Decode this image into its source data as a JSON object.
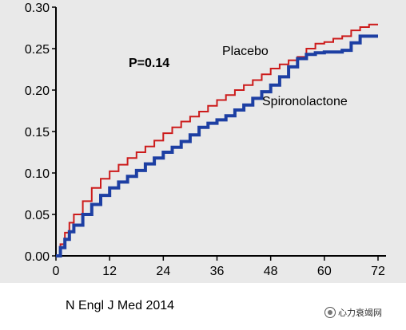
{
  "chart_data": {
    "type": "line",
    "title": "",
    "xlabel": "",
    "ylabel": "",
    "xlim": [
      0,
      72
    ],
    "ylim": [
      0,
      0.3
    ],
    "x_ticks": [
      "0",
      "12",
      "24",
      "36",
      "48",
      "60",
      "72"
    ],
    "y_ticks": [
      "0.00",
      "0.05",
      "0.10",
      "0.15",
      "0.20",
      "0.25",
      "0.30"
    ],
    "annotation": "P=0.14",
    "series": [
      {
        "name": "Placebo",
        "color": "#cc1b1b",
        "x": [
          0,
          1,
          2,
          3,
          4,
          6,
          8,
          10,
          12,
          14,
          16,
          18,
          20,
          22,
          24,
          26,
          28,
          30,
          32,
          34,
          36,
          38,
          40,
          42,
          44,
          46,
          48,
          50,
          52,
          54,
          56,
          58,
          60,
          62,
          64,
          66,
          68,
          70,
          72
        ],
        "y": [
          0.0,
          0.014,
          0.028,
          0.04,
          0.05,
          0.066,
          0.082,
          0.093,
          0.102,
          0.11,
          0.118,
          0.125,
          0.132,
          0.139,
          0.148,
          0.155,
          0.162,
          0.168,
          0.174,
          0.181,
          0.188,
          0.194,
          0.2,
          0.206,
          0.212,
          0.219,
          0.226,
          0.231,
          0.236,
          0.24,
          0.25,
          0.256,
          0.258,
          0.262,
          0.265,
          0.272,
          0.276,
          0.279,
          0.279
        ]
      },
      {
        "name": "Spironolactone",
        "color": "#1d3fa3",
        "x": [
          0,
          1,
          2,
          3,
          4,
          6,
          8,
          10,
          12,
          14,
          16,
          18,
          20,
          22,
          24,
          26,
          28,
          30,
          32,
          34,
          36,
          38,
          40,
          42,
          44,
          46,
          48,
          50,
          52,
          54,
          56,
          58,
          60,
          62,
          64,
          66,
          68,
          70,
          72
        ],
        "y": [
          0.0,
          0.01,
          0.02,
          0.029,
          0.037,
          0.05,
          0.062,
          0.073,
          0.082,
          0.089,
          0.096,
          0.103,
          0.111,
          0.118,
          0.125,
          0.131,
          0.138,
          0.146,
          0.155,
          0.16,
          0.164,
          0.169,
          0.176,
          0.182,
          0.19,
          0.198,
          0.206,
          0.216,
          0.228,
          0.238,
          0.243,
          0.245,
          0.246,
          0.246,
          0.248,
          0.257,
          0.265,
          0.265,
          0.265
        ]
      }
    ]
  },
  "citation": "N Engl J Med 2014",
  "watermark": "心力衰竭网"
}
